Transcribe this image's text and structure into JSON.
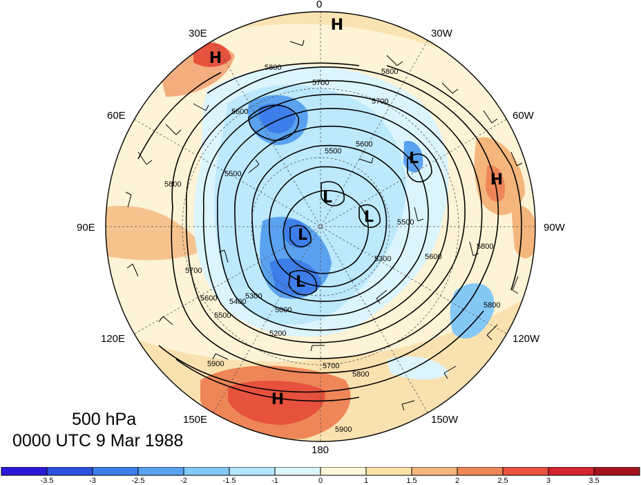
{
  "level_label": "500 hPa",
  "time_label": "0000 UTC 9 Mar 1988",
  "longitude_labels": {
    "lon_0": "0",
    "lon_30w": "30W",
    "lon_60w": "60W",
    "lon_90w": "90W",
    "lon_120w": "120W",
    "lon_150w": "150W",
    "lon_180": "180",
    "lon_150e": "150E",
    "lon_120e": "120E",
    "lon_90e": "90E",
    "lon_60e": "60E",
    "lon_30e": "30E"
  },
  "pressure_centers": [
    {
      "type": "H",
      "label": "H"
    },
    {
      "type": "H",
      "label": "H"
    },
    {
      "type": "H",
      "label": "H"
    },
    {
      "type": "H",
      "label": "H"
    },
    {
      "type": "L",
      "label": "L"
    },
    {
      "type": "L",
      "label": "L"
    },
    {
      "type": "L",
      "label": "L"
    },
    {
      "type": "L",
      "label": "L"
    },
    {
      "type": "L",
      "label": "L"
    }
  ],
  "contour_labels": [
    "5800",
    "5700",
    "5800",
    "5700",
    "5600",
    "5500",
    "5600",
    "5500",
    "5800",
    "5700",
    "5600",
    "5500",
    "5400",
    "5300",
    "5200",
    "5000",
    "5300",
    "5700",
    "5800",
    "5900",
    "5900",
    "5800",
    "5600",
    "5800",
    "5500"
  ],
  "colorbar": {
    "labels": [
      "-3.5",
      "-3",
      "-2.5",
      "-2",
      "-1.5",
      "-1",
      "0",
      "1",
      "1.5",
      "2",
      "2.5",
      "3",
      "3.5"
    ],
    "colors": [
      "#2a1ad8",
      "#2c52e0",
      "#3d7eea",
      "#5aa2f0",
      "#84c8f6",
      "#b4e6fb",
      "#dcf4fc",
      "#fdf6d8",
      "#fbe3a8",
      "#f4b67c",
      "#ee8658",
      "#e6523e",
      "#d2232e",
      "#a4121e"
    ]
  }
}
